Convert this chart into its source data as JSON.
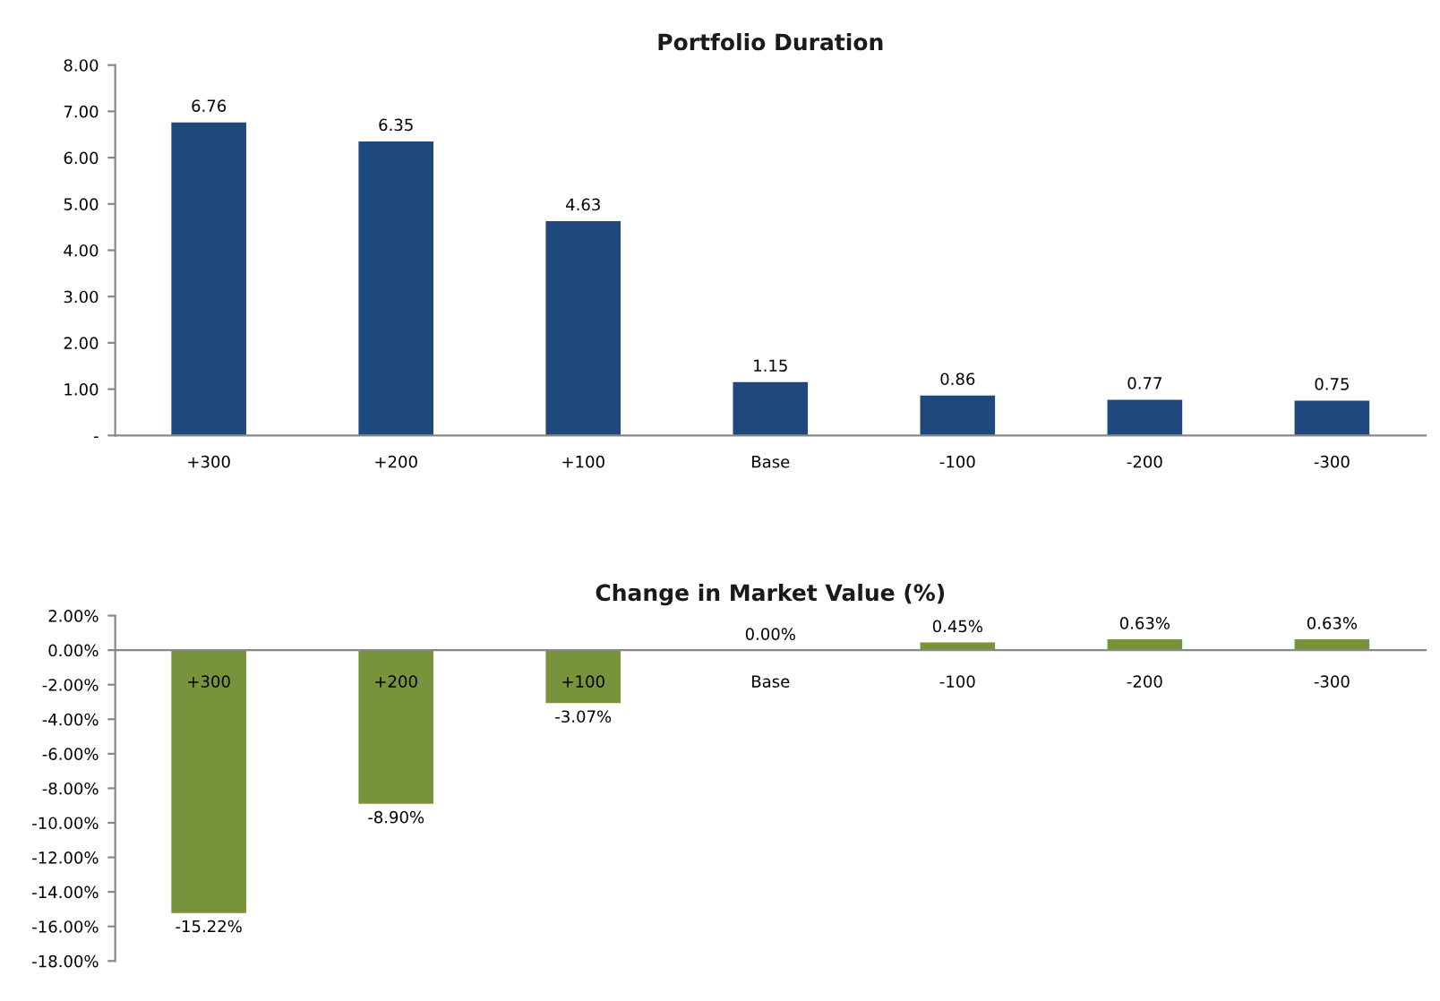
{
  "chart_data": [
    {
      "type": "bar",
      "title": "Portfolio Duration",
      "categories": [
        "+300",
        "+200",
        "+100",
        "Base",
        "-100",
        "-200",
        "-300"
      ],
      "values": [
        6.76,
        6.35,
        4.63,
        1.15,
        0.86,
        0.77,
        0.75
      ],
      "color": "#1f497d",
      "value_labels": [
        "6.76",
        "6.35",
        "4.63",
        "1.15",
        "0.86",
        "0.77",
        "0.75"
      ],
      "ylim": [
        0,
        8
      ],
      "yticks": [
        {
          "value": 0,
          "label": "-"
        },
        {
          "value": 1,
          "label": "1.00"
        },
        {
          "value": 2,
          "label": "2.00"
        },
        {
          "value": 3,
          "label": "3.00"
        },
        {
          "value": 4,
          "label": "4.00"
        },
        {
          "value": 5,
          "label": "5.00"
        },
        {
          "value": 6,
          "label": "6.00"
        },
        {
          "value": 7,
          "label": "7.00"
        },
        {
          "value": 8,
          "label": "8.00"
        }
      ],
      "grid": false,
      "legend": false
    },
    {
      "type": "bar",
      "title": "Change in Market Value (%)",
      "categories": [
        "+300",
        "+200",
        "+100",
        "Base",
        "-100",
        "-200",
        "-300"
      ],
      "values": [
        -15.22,
        -8.9,
        -3.07,
        0.0,
        0.45,
        0.63,
        0.63
      ],
      "color": "#77933c",
      "value_labels": [
        "-15.22%",
        "-8.90%",
        "-3.07%",
        "0.00%",
        "0.45%",
        "0.63%",
        "0.63%"
      ],
      "ylim": [
        -18,
        2
      ],
      "yticks": [
        {
          "value": 2,
          "label": "2.00%"
        },
        {
          "value": 0,
          "label": "0.00%"
        },
        {
          "value": -2,
          "label": "-2.00%"
        },
        {
          "value": -4,
          "label": "-4.00%"
        },
        {
          "value": -6,
          "label": "-6.00%"
        },
        {
          "value": -8,
          "label": "-8.00%"
        },
        {
          "value": -10,
          "label": "-10.00%"
        },
        {
          "value": -12,
          "label": "-12.00%"
        },
        {
          "value": -14,
          "label": "-14.00%"
        },
        {
          "value": -16,
          "label": "-16.00%"
        },
        {
          "value": -18,
          "label": "-18.00%"
        }
      ],
      "grid": false,
      "legend": false
    }
  ]
}
